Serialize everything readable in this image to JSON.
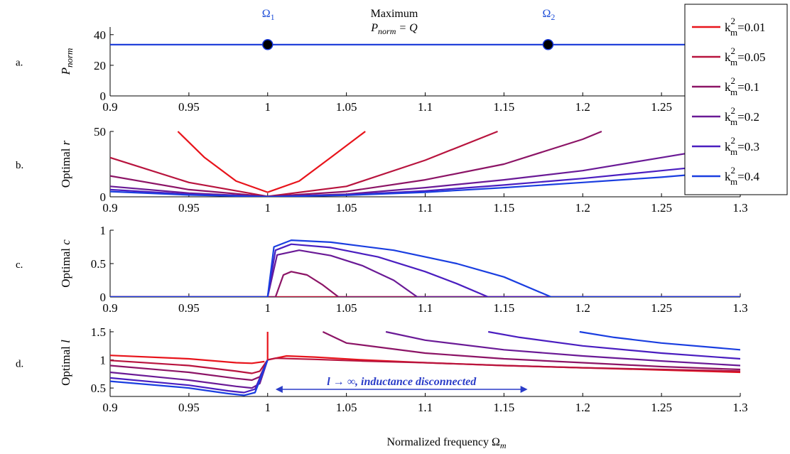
{
  "chart_data": [
    {
      "type": "line",
      "panel_label": "a.",
      "ylabel": "P",
      "ylabel_sub": "norm",
      "xlim": [
        0.9,
        1.3
      ],
      "ylim": [
        0,
        45
      ],
      "x_ticks": [
        "0.9",
        "0.95",
        "1",
        "1.05",
        "1.1",
        "1.15",
        "1.2",
        "1.25"
      ],
      "y_ticks": [
        "0",
        "20",
        "40"
      ],
      "series": [
        {
          "x": [
            0.9,
            1.3
          ],
          "y": [
            33.5,
            33.5
          ]
        }
      ],
      "markers": [
        {
          "x": 1.0,
          "y": 33.5,
          "label": "Ω",
          "label_sub": "1"
        },
        {
          "x": 1.178,
          "y": 33.5,
          "label": "Ω",
          "label_sub": "2"
        }
      ],
      "annotation_line1": "Maximum",
      "annotation_line2_main": "P",
      "annotation_line2_sub": "norm",
      "annotation_line2_rest": " = Q"
    },
    {
      "type": "line",
      "panel_label": "b.",
      "ylabel": "Optimal r",
      "xlim": [
        0.9,
        1.3
      ],
      "ylim": [
        0,
        50
      ],
      "x_ticks": [
        "0.9",
        "0.95",
        "1",
        "1.05",
        "1.1",
        "1.15",
        "1.2",
        "1.25",
        "1.3"
      ],
      "y_ticks": [
        "0",
        "50"
      ],
      "series": [
        {
          "x": [
            0.943,
            0.96,
            0.98,
            1.0,
            1.02,
            1.04,
            1.062
          ],
          "y": [
            50,
            30,
            12,
            3.5,
            12,
            30,
            50
          ]
        },
        {
          "x": [
            0.9,
            0.95,
            1.0,
            1.05,
            1.1,
            1.146
          ],
          "y": [
            30,
            11,
            0.3,
            8,
            28,
            50
          ]
        },
        {
          "x": [
            0.9,
            0.95,
            1.0,
            1.05,
            1.1,
            1.15,
            1.2,
            1.212
          ],
          "y": [
            16,
            5.5,
            0.2,
            4,
            13,
            25,
            44,
            50
          ]
        },
        {
          "x": [
            0.9,
            0.95,
            1.0,
            1.05,
            1.1,
            1.15,
            1.2,
            1.25,
            1.3
          ],
          "y": [
            8,
            2.8,
            0.1,
            2,
            7,
            13,
            20,
            30,
            40
          ]
        },
        {
          "x": [
            0.9,
            0.95,
            1.0,
            1.05,
            1.1,
            1.15,
            1.2,
            1.25,
            1.3
          ],
          "y": [
            5.5,
            1.9,
            0.05,
            1.5,
            4.5,
            9,
            14,
            20,
            26
          ]
        },
        {
          "x": [
            0.9,
            0.95,
            1.0,
            1.05,
            1.1,
            1.15,
            1.2,
            1.25,
            1.3
          ],
          "y": [
            4,
            1.4,
            0.04,
            1.2,
            3.5,
            7,
            11,
            15,
            20
          ]
        }
      ]
    },
    {
      "type": "line",
      "panel_label": "c.",
      "ylabel": "Optimal c",
      "xlim": [
        0.9,
        1.3
      ],
      "ylim": [
        0,
        1
      ],
      "x_ticks": [
        "0.9",
        "0.95",
        "1",
        "1.05",
        "1.1",
        "1.15",
        "1.2",
        "1.25",
        "1.3"
      ],
      "y_ticks": [
        "0",
        "0.5",
        "1"
      ],
      "series": [
        {
          "x": [
            0.9,
            1.3
          ],
          "y": [
            0,
            0
          ]
        },
        {
          "x": [
            0.9,
            1.3
          ],
          "y": [
            0,
            0
          ]
        },
        {
          "x": [
            0.9,
            1.005,
            1.01,
            1.015,
            1.025,
            1.035,
            1.045,
            1.3
          ],
          "y": [
            0,
            0,
            0.33,
            0.38,
            0.33,
            0.18,
            0,
            0
          ]
        },
        {
          "x": [
            0.9,
            1.0,
            1.006,
            1.02,
            1.04,
            1.06,
            1.08,
            1.095,
            1.3
          ],
          "y": [
            0,
            0,
            0.63,
            0.7,
            0.62,
            0.47,
            0.25,
            0,
            0
          ]
        },
        {
          "x": [
            0.9,
            1.0,
            1.005,
            1.015,
            1.04,
            1.07,
            1.1,
            1.12,
            1.14,
            1.3
          ],
          "y": [
            0,
            0,
            0.7,
            0.79,
            0.74,
            0.6,
            0.38,
            0.2,
            0,
            0
          ]
        },
        {
          "x": [
            0.9,
            1.0,
            1.004,
            1.015,
            1.04,
            1.08,
            1.12,
            1.15,
            1.18,
            1.3
          ],
          "y": [
            0,
            0,
            0.75,
            0.85,
            0.82,
            0.7,
            0.5,
            0.3,
            0,
            0
          ]
        }
      ]
    },
    {
      "type": "line",
      "panel_label": "d.",
      "ylabel": "Optimal l",
      "xlabel": "Normalized frequency Ω",
      "xlabel_sub": "m",
      "xlim": [
        0.9,
        1.3
      ],
      "ylim": [
        0.35,
        1.55
      ],
      "x_ticks": [
        "0.9",
        "0.95",
        "1",
        "1.05",
        "1.1",
        "1.15",
        "1.2",
        "1.25",
        "1.3"
      ],
      "y_ticks": [
        "0.5",
        "1",
        "1.5"
      ],
      "series": [
        {
          "segments": [
            {
              "x": [
                0.9,
                0.95,
                0.98,
                0.99,
                0.998
              ],
              "y": [
                1.08,
                1.02,
                0.95,
                0.94,
                0.97
              ]
            },
            {
              "x": [
                1.0,
                1.012,
                1.03,
                1.06,
                1.1,
                1.15,
                1.2,
                1.25,
                1.3
              ],
              "y": [
                1.0,
                1.07,
                1.05,
                1.0,
                0.95,
                0.9,
                0.86,
                0.82,
                0.78
              ]
            }
          ]
        },
        {
          "segments": [
            {
              "x": [
                0.9,
                0.95,
                0.98,
                0.99,
                0.995,
                1.0
              ],
              "y": [
                0.99,
                0.9,
                0.8,
                0.76,
                0.8,
                1.0
              ]
            },
            {
              "x": [
                1.0,
                1.005,
                1.03,
                1.06,
                1.1,
                1.15,
                1.2,
                1.25,
                1.3
              ],
              "y": [
                1.0,
                1.03,
                1.01,
                0.98,
                0.95,
                0.9,
                0.86,
                0.83,
                0.8
              ]
            }
          ]
        },
        {
          "segments": [
            {
              "x": [
                0.9,
                0.95,
                0.98,
                0.99,
                0.995,
                1.0
              ],
              "y": [
                0.9,
                0.78,
                0.67,
                0.64,
                0.7,
                1.0
              ]
            },
            {
              "x": [
                1.035,
                1.05,
                1.1,
                1.15,
                1.2,
                1.25,
                1.3
              ],
              "y": [
                1.5,
                1.3,
                1.12,
                1.02,
                0.95,
                0.88,
                0.83
              ]
            }
          ]
        },
        {
          "segments": [
            {
              "x": [
                0.9,
                0.95,
                0.98,
                0.99,
                0.995,
                1.0
              ],
              "y": [
                0.78,
                0.64,
                0.53,
                0.5,
                0.58,
                1.0
              ]
            },
            {
              "x": [
                1.075,
                1.1,
                1.15,
                1.2,
                1.25,
                1.3
              ],
              "y": [
                1.5,
                1.35,
                1.18,
                1.07,
                0.98,
                0.9
              ]
            }
          ]
        },
        {
          "segments": [
            {
              "x": [
                0.9,
                0.95,
                0.975,
                0.985,
                0.992,
                1.0
              ],
              "y": [
                0.68,
                0.55,
                0.45,
                0.42,
                0.48,
                1.0
              ]
            },
            {
              "x": [
                1.14,
                1.16,
                1.2,
                1.25,
                1.3
              ],
              "y": [
                1.5,
                1.4,
                1.25,
                1.12,
                1.02
              ]
            }
          ]
        },
        {
          "segments": [
            {
              "x": [
                0.9,
                0.95,
                0.975,
                0.985,
                0.992,
                1.0
              ],
              "y": [
                0.62,
                0.5,
                0.4,
                0.37,
                0.42,
                1.0
              ]
            },
            {
              "x": [
                1.198,
                1.22,
                1.25,
                1.3
              ],
              "y": [
                1.5,
                1.4,
                1.3,
                1.18
              ]
            }
          ]
        },
        {
          "segments": [
            {
              "x": [
                1.0,
                1.0
              ],
              "y": [
                1.0,
                1.5
              ]
            }
          ]
        }
      ],
      "arrow_x": [
        1.005,
        1.165
      ],
      "arrow_y": 0.4,
      "arrow_text": "l → ∞, inductance disconnected"
    }
  ],
  "legend": {
    "placement": "top-right",
    "prefix": "k",
    "sub": "m",
    "sup": "2",
    "entries": [
      {
        "value": "=0.01",
        "color": "#e8141b"
      },
      {
        "value": "=0.05",
        "color": "#b8143e"
      },
      {
        "value": "=0.1",
        "color": "#8c1466"
      },
      {
        "value": "=0.2",
        "color": "#6a1a96"
      },
      {
        "value": "=0.3",
        "color": "#4a1ec0"
      },
      {
        "value": "=0.4",
        "color": "#1a3ee0"
      }
    ]
  },
  "colors": {
    "pnorm_line": "#1536d8",
    "marker_fill": "#000000",
    "marker_stroke": "#1536d8"
  }
}
